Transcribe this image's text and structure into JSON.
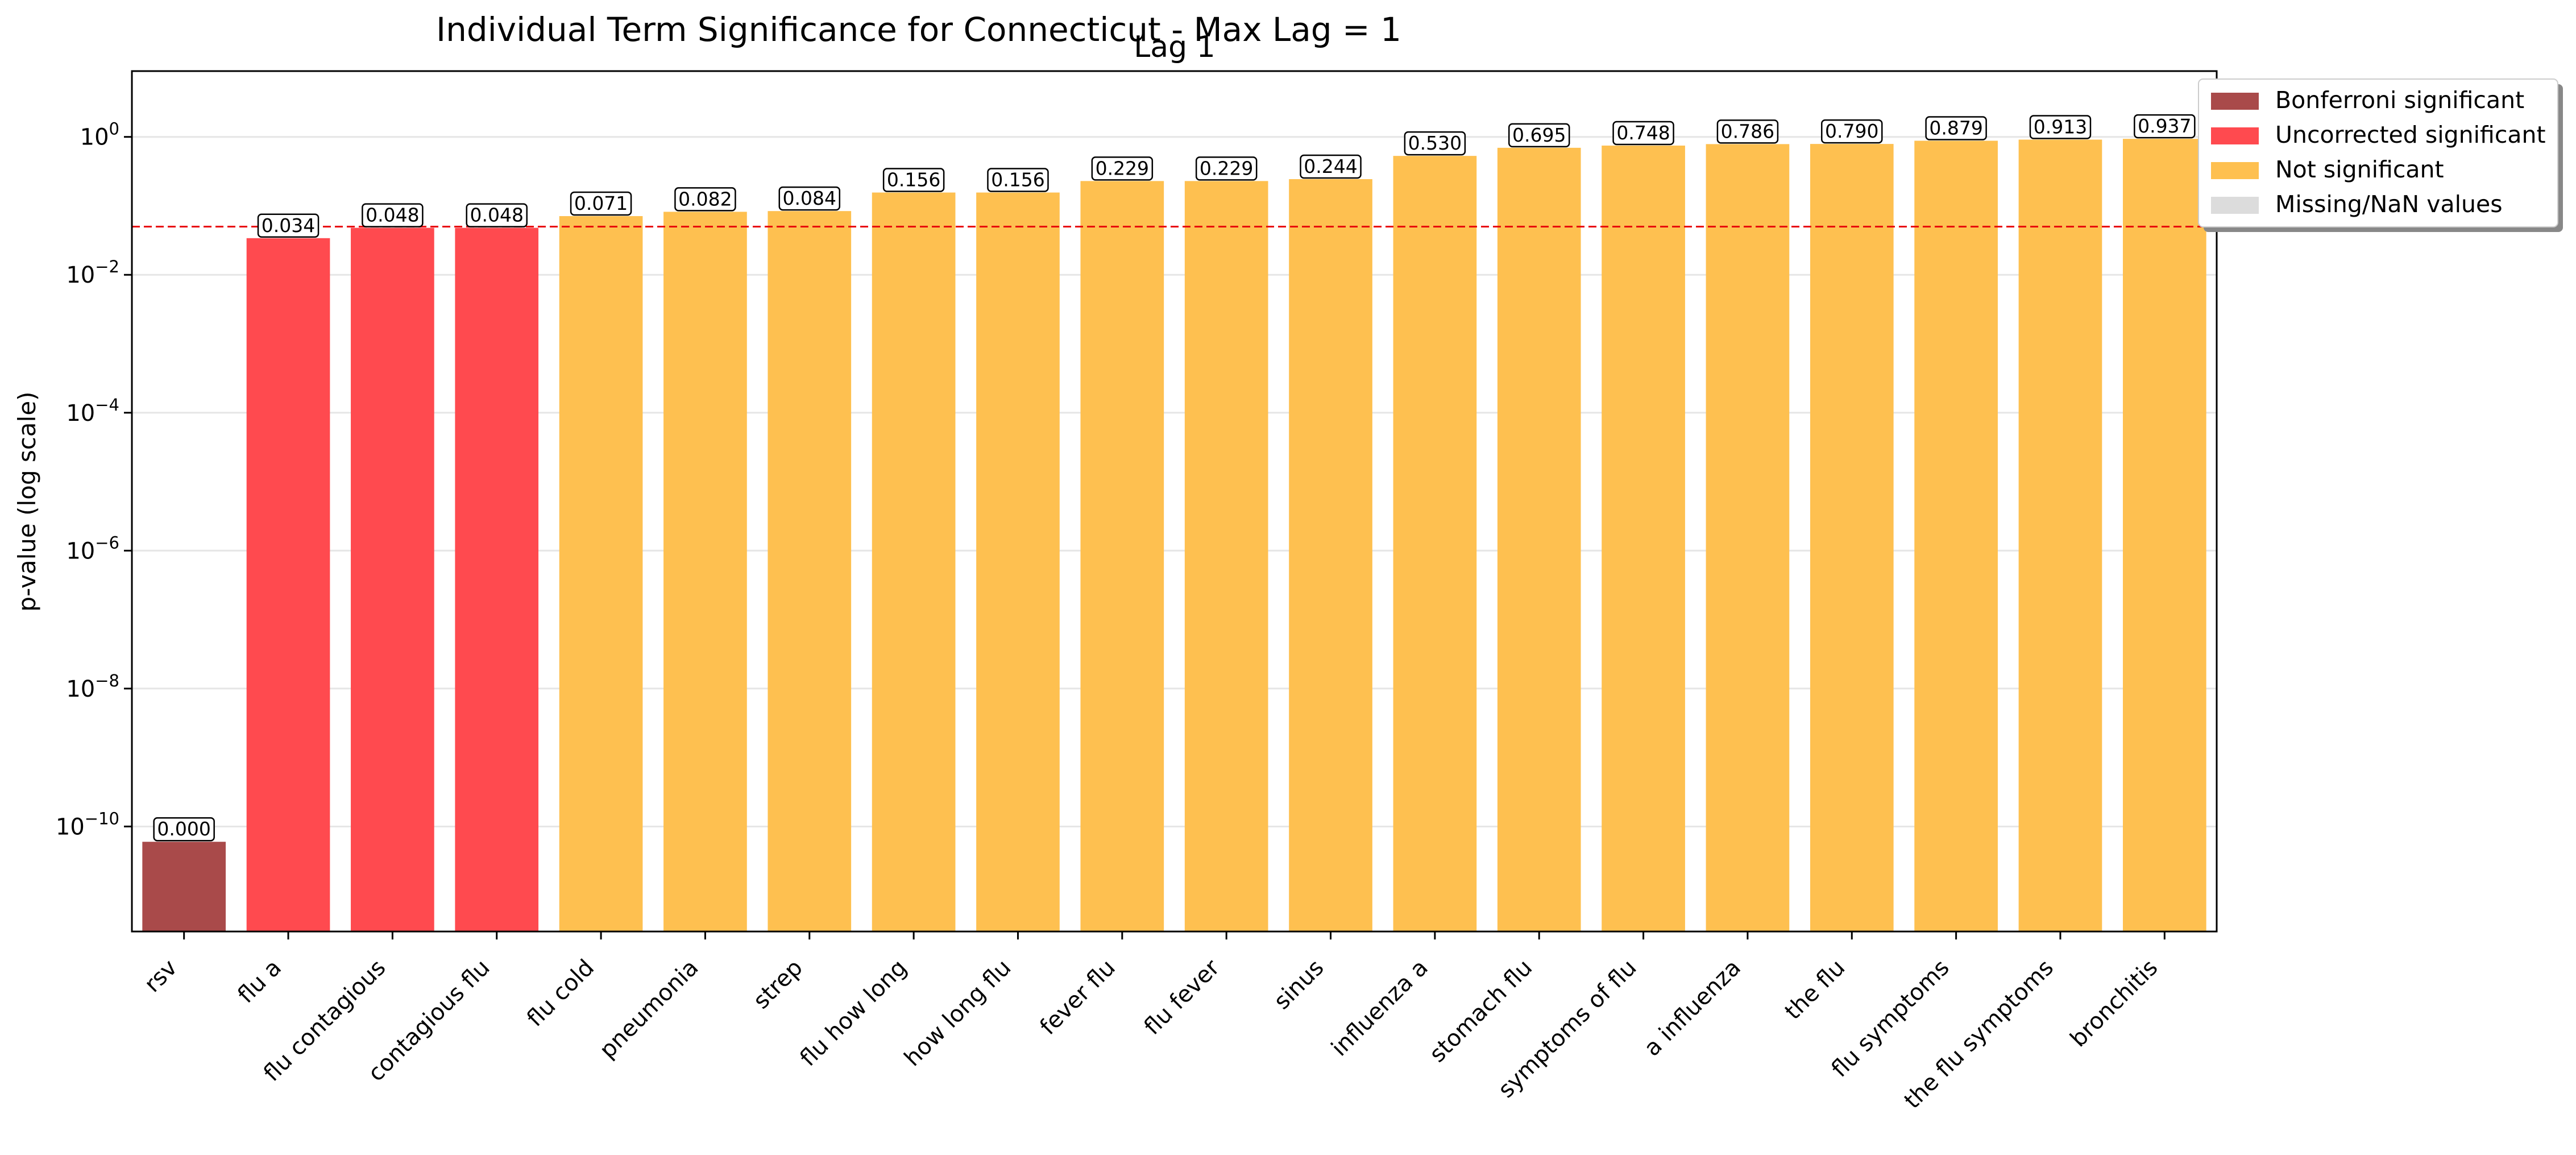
{
  "chart_data": {
    "type": "bar",
    "title": "Individual Term Significance for Connecticut - Max Lag = 1",
    "subtitle": "Lag 1",
    "xlabel": "",
    "ylabel": "p-value (log scale)",
    "yscale": "log",
    "ylim": [
      3e-12,
      9
    ],
    "y_ticks": [
      {
        "base": "10",
        "exp": "0",
        "value": 1
      },
      {
        "base": "10",
        "exp": "−2",
        "value": 0.01
      },
      {
        "base": "10",
        "exp": "−4",
        "value": 0.0001
      },
      {
        "base": "10",
        "exp": "−6",
        "value": 1e-06
      },
      {
        "base": "10",
        "exp": "−8",
        "value": 1e-08
      },
      {
        "base": "10",
        "exp": "−10",
        "value": 1e-10
      }
    ],
    "grid": "horizontal",
    "threshold": {
      "value": 0.05,
      "color": "#e8000b",
      "style": "dashed"
    },
    "categories": [
      "rsv",
      "flu a",
      "flu contagious",
      "contagious flu",
      "flu cold",
      "pneumonia",
      "strep",
      "flu how long",
      "how long flu",
      "fever flu",
      "flu fever",
      "sinus",
      "influenza a",
      "stomach flu",
      "symptoms of flu",
      "a influenza",
      "the flu",
      "flu symptoms",
      "the flu symptoms",
      "bronchitis"
    ],
    "values": [
      6e-11,
      0.034,
      0.048,
      0.048,
      0.071,
      0.082,
      0.084,
      0.156,
      0.156,
      0.229,
      0.229,
      0.244,
      0.53,
      0.695,
      0.748,
      0.786,
      0.79,
      0.879,
      0.913,
      0.937
    ],
    "value_labels": [
      "0.000",
      "0.034",
      "0.048",
      "0.048",
      "0.071",
      "0.082",
      "0.084",
      "0.156",
      "0.156",
      "0.229",
      "0.229",
      "0.244",
      "0.530",
      "0.695",
      "0.748",
      "0.786",
      "0.790",
      "0.879",
      "0.913",
      "0.937"
    ],
    "groups": [
      "bonferroni",
      "uncorrected",
      "uncorrected",
      "uncorrected",
      "ns",
      "ns",
      "ns",
      "ns",
      "ns",
      "ns",
      "ns",
      "ns",
      "ns",
      "ns",
      "ns",
      "ns",
      "ns",
      "ns",
      "ns",
      "ns"
    ],
    "legend": {
      "placement": "top-right",
      "entries": [
        {
          "key": "bonferroni",
          "label": "Bonferroni significant",
          "color": "#a94a4a"
        },
        {
          "key": "uncorrected",
          "label": "Uncorrected significant",
          "color": "#ff4a4f"
        },
        {
          "key": "ns",
          "label": "Not significant",
          "color": "#fec050"
        },
        {
          "key": "nan",
          "label": "Missing/NaN values",
          "color": "#dcdcdc"
        }
      ]
    }
  }
}
